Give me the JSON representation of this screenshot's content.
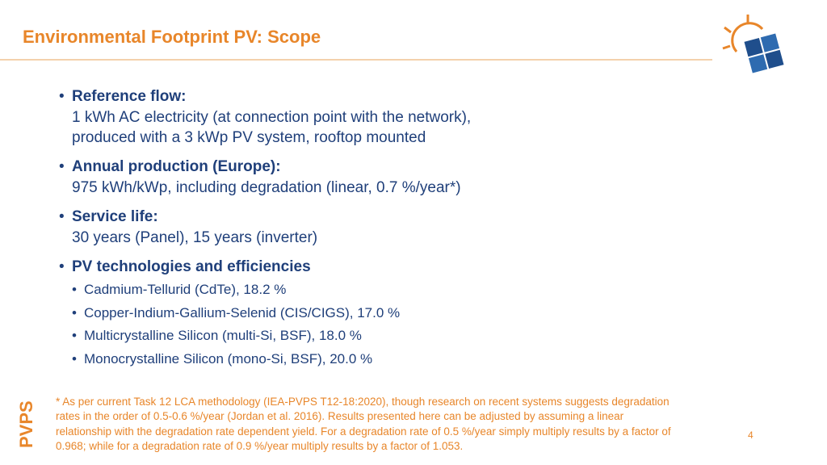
{
  "header": {
    "title": "Environmental Footprint PV: Scope"
  },
  "bullets": [
    {
      "heading": "Reference flow:",
      "lines": [
        "1 kWh AC electricity (at connection point with the network),",
        "produced with a 3 kWp PV system, rooftop mounted"
      ]
    },
    {
      "heading": "Annual production (Europe):",
      "lines": [
        "975 kWh/kWp, including degradation (linear, 0.7 %/year*)"
      ]
    },
    {
      "heading": "Service life:",
      "lines": [
        "30 years (Panel), 15 years (inverter)"
      ]
    },
    {
      "heading": "PV technologies and efficiencies",
      "sub": [
        "Cadmium-Tellurid (CdTe), 18.2 %",
        "Copper-Indium-Gallium-Selenid (CIS/CIGS), 17.0 %",
        "Multicrystalline Silicon (multi-Si, BSF), 18.0 %",
        "Monocrystalline Silicon (mono-Si, BSF), 20.0 %"
      ]
    }
  ],
  "footnote": [
    "* As per current Task 12 LCA methodology (IEA-PVPS T12-18:2020), though research on recent systems suggests degradation",
    "rates in the order of 0.5-0.6 %/year (Jordan et al. 2016). Results presented here can be adjusted by assuming a linear",
    "relationship with the degradation rate dependent yield. For a degradation rate of 0.5 %/year simply multiply results by a factor of",
    "0.968; while for a degradation rate of 0.9 %/year multiply results by a factor of 1.053."
  ],
  "footer": {
    "brand": "PVPS",
    "page": "4"
  }
}
